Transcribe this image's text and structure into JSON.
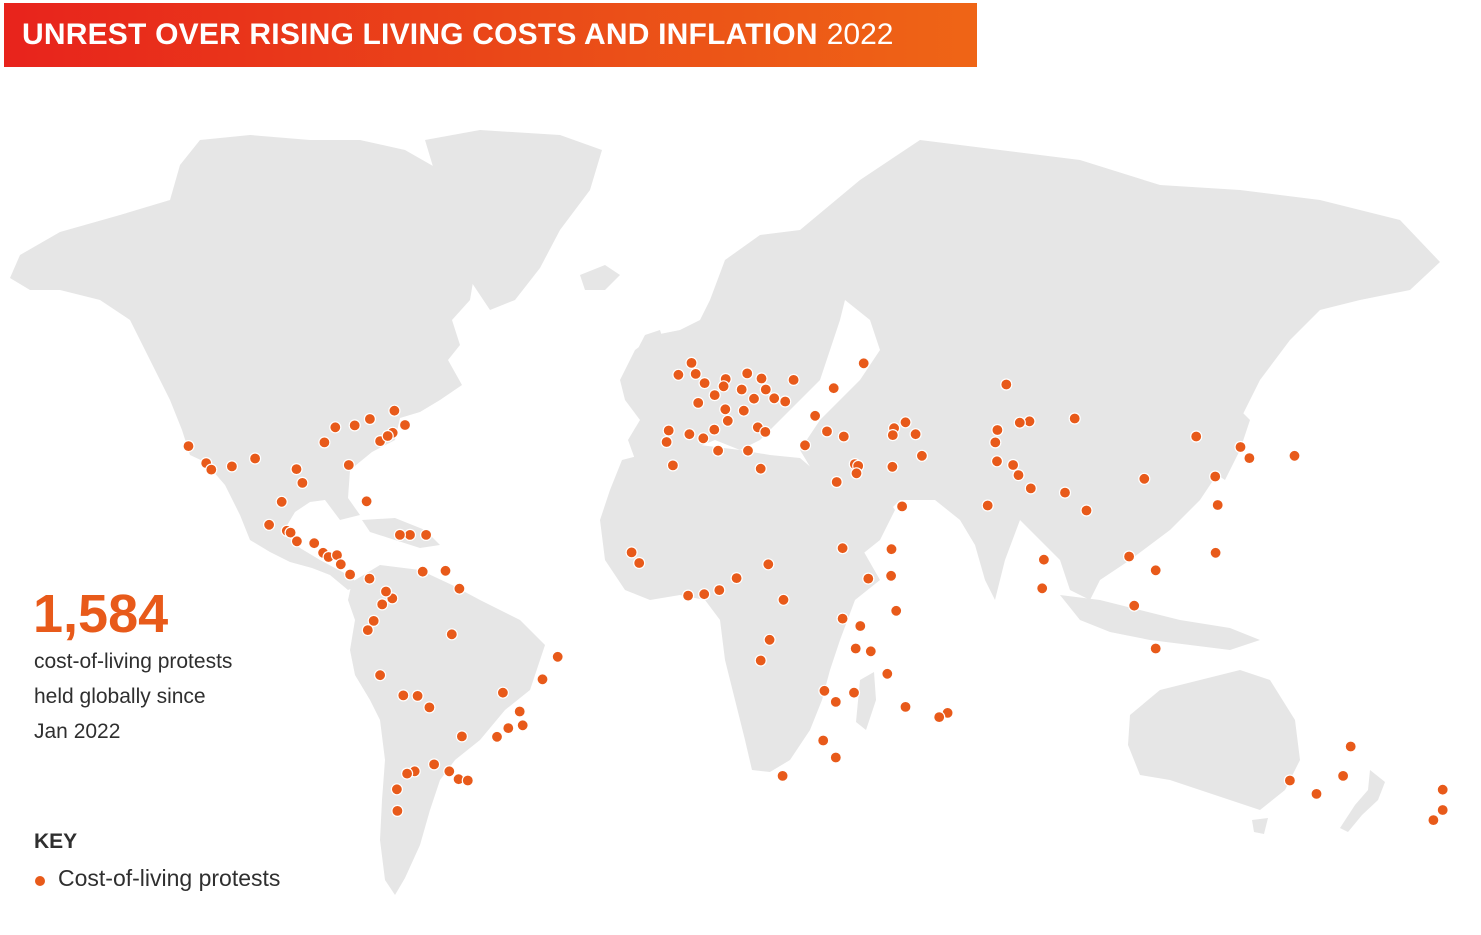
{
  "header": {
    "title": "UNREST OVER RISING LIVING COSTS AND INFLATION",
    "year": "2022"
  },
  "stat": {
    "number": "1,584",
    "line1": "cost-of-living protests",
    "line2": "held globally since",
    "line3": "Jan 2022"
  },
  "key": {
    "title": "KEY",
    "item_label": "Cost-of-living protests"
  },
  "colors": {
    "banner_start": "#e8231c",
    "banner_end": "#ef6516",
    "protest_dot": "#e85a1a",
    "land": "#e6e6e6",
    "text": "#2f2f2f"
  },
  "map_data": {
    "type": "dot-map",
    "series": [
      {
        "name": "Cost-of-living protests",
        "points_lonlat": [
          [
            -122.4,
            37.8
          ],
          [
            -118.2,
            34.1
          ],
          [
            -112.1,
            33.4
          ],
          [
            -117.0,
            32.7
          ],
          [
            -106.6,
            35.1
          ],
          [
            -87.6,
            41.9
          ],
          [
            -83.0,
            42.3
          ],
          [
            -79.4,
            43.7
          ],
          [
            -73.6,
            45.5
          ],
          [
            -71.1,
            42.4
          ],
          [
            -74.0,
            40.7
          ],
          [
            -77.0,
            38.9
          ],
          [
            -75.2,
            40.0
          ],
          [
            -80.2,
            25.8
          ],
          [
            -84.4,
            33.7
          ],
          [
            -90.2,
            38.6
          ],
          [
            -96.8,
            32.8
          ],
          [
            -95.4,
            29.8
          ],
          [
            -100.3,
            25.7
          ],
          [
            -103.3,
            20.7
          ],
          [
            -99.1,
            19.4
          ],
          [
            -98.2,
            19.0
          ],
          [
            -96.7,
            17.1
          ],
          [
            -92.6,
            16.7
          ],
          [
            -90.5,
            14.6
          ],
          [
            -89.2,
            13.7
          ],
          [
            -87.2,
            14.1
          ],
          [
            -86.3,
            12.1
          ],
          [
            -84.1,
            9.9
          ],
          [
            -79.5,
            9.0
          ],
          [
            -76.5,
            3.4
          ],
          [
            -74.1,
            4.7
          ],
          [
            -75.6,
            6.2
          ],
          [
            -69.9,
            18.5
          ],
          [
            -72.3,
            18.5
          ],
          [
            -66.1,
            18.5
          ],
          [
            -61.5,
            10.7
          ],
          [
            -66.9,
            10.5
          ],
          [
            -58.2,
            6.8
          ],
          [
            -78.5,
            -0.2
          ],
          [
            -79.9,
            -2.2
          ],
          [
            -77.0,
            -12.0
          ],
          [
            -71.5,
            -16.4
          ],
          [
            -68.1,
            -16.5
          ],
          [
            -65.3,
            -19.0
          ],
          [
            -57.6,
            -25.3
          ],
          [
            -58.4,
            -34.6
          ],
          [
            -56.2,
            -34.9
          ],
          [
            -60.6,
            -32.9
          ],
          [
            -64.2,
            -31.4
          ],
          [
            -68.8,
            -32.9
          ],
          [
            -70.6,
            -33.4
          ],
          [
            -73.0,
            -36.8
          ],
          [
            -72.9,
            -41.5
          ],
          [
            -46.6,
            -23.5
          ],
          [
            -43.2,
            -22.9
          ],
          [
            -43.9,
            -19.9
          ],
          [
            -47.9,
            -15.8
          ],
          [
            -49.3,
            -25.4
          ],
          [
            -38.5,
            -12.9
          ],
          [
            -34.9,
            -8.0
          ],
          [
            -60.0,
            -3.1
          ],
          [
            -0.1,
            51.5
          ],
          [
            -2.2,
            53.5
          ],
          [
            -3.2,
            55.9
          ],
          [
            -6.3,
            53.3
          ],
          [
            2.3,
            48.9
          ],
          [
            4.8,
            45.8
          ],
          [
            5.4,
            43.3
          ],
          [
            -1.6,
            47.2
          ],
          [
            -3.7,
            40.4
          ],
          [
            2.2,
            41.4
          ],
          [
            -0.4,
            39.5
          ],
          [
            -9.1,
            38.7
          ],
          [
            -8.6,
            41.2
          ],
          [
            4.9,
            52.4
          ],
          [
            4.4,
            50.8
          ],
          [
            8.7,
            50.1
          ],
          [
            13.4,
            52.5
          ],
          [
            11.6,
            48.1
          ],
          [
            10.0,
            53.6
          ],
          [
            16.4,
            48.2
          ],
          [
            14.4,
            50.1
          ],
          [
            21.0,
            52.2
          ],
          [
            19.0,
            47.5
          ],
          [
            12.5,
            41.9
          ],
          [
            9.2,
            45.5
          ],
          [
            14.3,
            40.9
          ],
          [
            26.1,
            44.4
          ],
          [
            23.7,
            37.98
          ],
          [
            28.9,
            41.0
          ],
          [
            32.9,
            39.9
          ],
          [
            35.5,
            33.9
          ],
          [
            36.3,
            33.5
          ],
          [
            35.9,
            31.9
          ],
          [
            31.2,
            30.0
          ],
          [
            44.4,
            33.3
          ],
          [
            51.4,
            35.7
          ],
          [
            46.7,
            24.7
          ],
          [
            44.2,
            15.4
          ],
          [
            -7.6,
            33.6
          ],
          [
            10.2,
            36.8
          ],
          [
            13.2,
            32.9
          ],
          [
            3.1,
            36.8
          ],
          [
            37.6,
            55.8
          ],
          [
            30.5,
            50.4
          ],
          [
            47.5,
            42.98
          ],
          [
            49.9,
            40.4
          ],
          [
            44.8,
            41.7
          ],
          [
            44.5,
            40.2
          ],
          [
            69.3,
            41.3
          ],
          [
            71.4,
            51.2
          ],
          [
            76.9,
            43.2
          ],
          [
            74.6,
            42.9
          ],
          [
            68.8,
            38.6
          ],
          [
            69.2,
            34.5
          ],
          [
            73.0,
            33.7
          ],
          [
            67.0,
            24.9
          ],
          [
            74.3,
            31.5
          ],
          [
            77.2,
            28.6
          ],
          [
            85.3,
            27.7
          ],
          [
            90.4,
            23.8
          ],
          [
            80.3,
            13.1
          ],
          [
            79.9,
            6.9
          ],
          [
            100.5,
            13.8
          ],
          [
            106.8,
            10.8
          ],
          [
            106.8,
            -6.2
          ],
          [
            101.7,
            3.1
          ],
          [
            121.0,
            14.6
          ],
          [
            120.9,
            31.2
          ],
          [
            121.5,
            25.0
          ],
          [
            126.9,
            37.6
          ],
          [
            129.0,
            35.2
          ],
          [
            139.7,
            35.7
          ],
          [
            116.4,
            39.9
          ],
          [
            104.1,
            30.7
          ],
          [
            87.6,
            43.8
          ],
          [
            -17.4,
            14.7
          ],
          [
            -15.6,
            12.4
          ],
          [
            -4.0,
            5.3
          ],
          [
            -0.2,
            5.6
          ],
          [
            3.4,
            6.5
          ],
          [
            7.5,
            9.1
          ],
          [
            15.0,
            12.1
          ],
          [
            18.6,
            4.4
          ],
          [
            32.6,
            15.6
          ],
          [
            38.7,
            9.0
          ],
          [
            36.8,
            -1.3
          ],
          [
            32.6,
            0.3
          ],
          [
            39.3,
            -6.8
          ],
          [
            35.7,
            -6.2
          ],
          [
            28.3,
            -15.4
          ],
          [
            31.0,
            -17.8
          ],
          [
            35.3,
            -15.8
          ],
          [
            18.4,
            -33.9
          ],
          [
            28.0,
            -26.2
          ],
          [
            31.0,
            -29.9
          ],
          [
            13.2,
            -8.8
          ],
          [
            15.3,
            -4.3
          ],
          [
            47.5,
            -18.9
          ],
          [
            57.5,
            -20.2
          ],
          [
            55.5,
            -21.1
          ],
          [
            45.3,
            2.0
          ],
          [
            44.1,
            9.6
          ],
          [
            43.2,
            -11.7
          ],
          [
            151.2,
            -33.9
          ],
          [
            153.0,
            -27.5
          ],
          [
            144.9,
            -37.8
          ],
          [
            138.6,
            -34.9
          ],
          [
            174.8,
            -36.9
          ],
          [
            174.8,
            -41.3
          ],
          [
            172.6,
            -43.5
          ]
        ]
      }
    ]
  }
}
